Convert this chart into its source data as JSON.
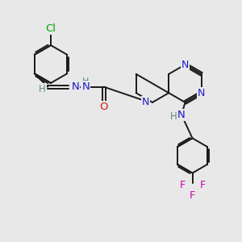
{
  "background_color": "#e8e8e8",
  "bond_color": "#1a1a1a",
  "nitrogen_color": "#1a1acc",
  "oxygen_color": "#cc1a1a",
  "chlorine_color": "#00aa00",
  "fluorine_color": "#cc00aa",
  "h_color": "#5a8a8a",
  "line_width": 1.4,
  "figsize": [
    3.0,
    3.0
  ],
  "dpi": 100,
  "xlim": [
    0,
    10
  ],
  "ylim": [
    0,
    10
  ]
}
